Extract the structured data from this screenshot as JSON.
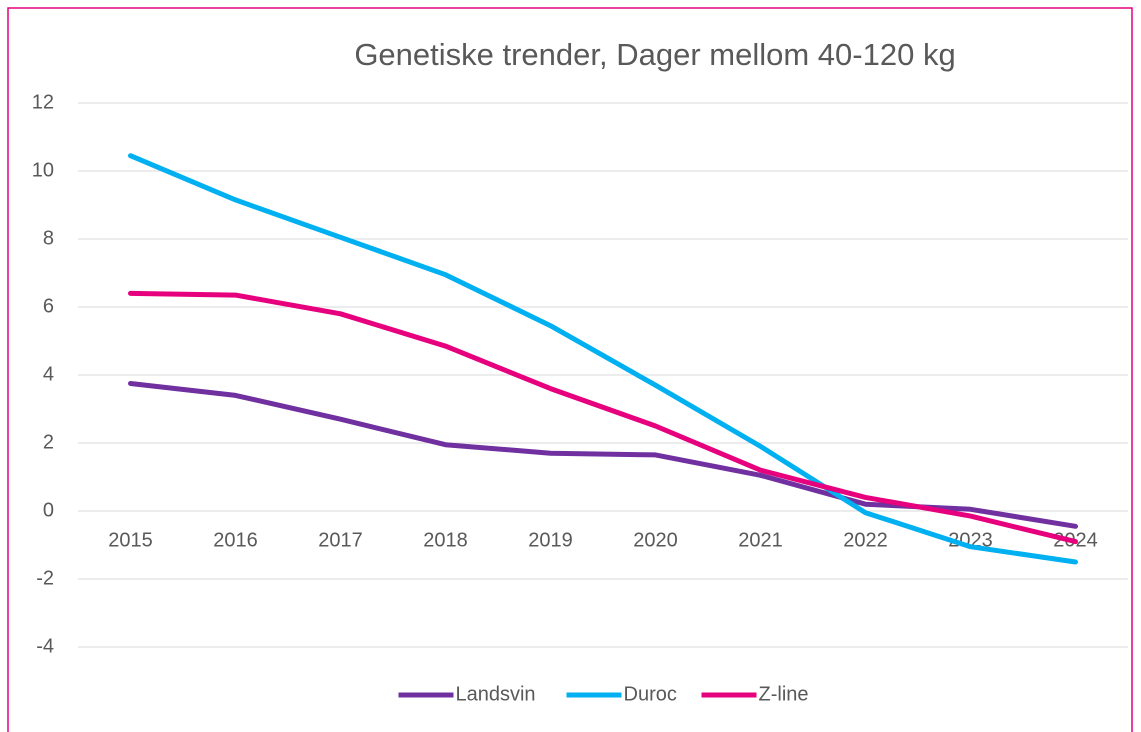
{
  "chart_data": {
    "type": "line",
    "title": "Genetiske trender, Dager mellom 40-120 kg",
    "categories": [
      "2015",
      "2016",
      "2017",
      "2018",
      "2019",
      "2020",
      "2021",
      "2022",
      "2023",
      "2024"
    ],
    "series": [
      {
        "name": "Landsvin",
        "color": "#7030a0",
        "values": [
          3.75,
          3.4,
          2.7,
          1.95,
          1.7,
          1.65,
          1.05,
          0.2,
          0.05,
          -0.45
        ]
      },
      {
        "name": "Duroc",
        "color": "#00b0f0",
        "values": [
          10.45,
          9.15,
          8.05,
          6.95,
          5.45,
          3.7,
          1.9,
          -0.05,
          -1.05,
          -1.5
        ]
      },
      {
        "name": "Z-line",
        "color": "#e6007e",
        "values": [
          6.4,
          6.35,
          5.8,
          4.85,
          3.6,
          2.5,
          1.2,
          0.4,
          -0.15,
          -0.9
        ]
      }
    ],
    "ylim": [
      -4,
      12
    ],
    "yticks": [
      -4,
      -2,
      0,
      2,
      4,
      6,
      8,
      10,
      12
    ],
    "grid": true,
    "legend": "bottom"
  }
}
